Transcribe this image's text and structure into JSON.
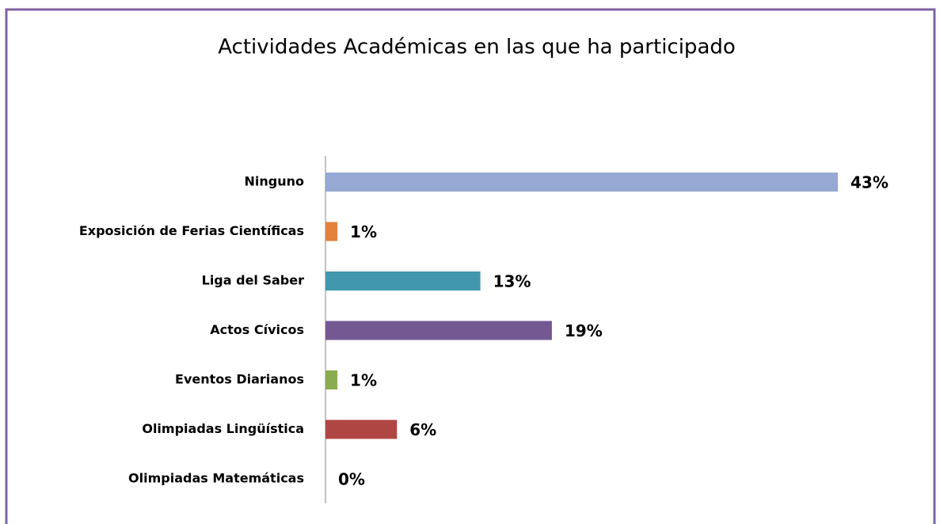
{
  "chart_data": {
    "type": "bar",
    "orientation": "horizontal",
    "title": "Actividades Académicas en las que ha participado",
    "categories": [
      "Ninguno",
      "Exposición de Ferias Científicas",
      "Liga del Saber",
      "Actos Cívicos",
      "Eventos Diarianos",
      "Olimpiadas Lingüística",
      "Olimpiadas Matemáticas"
    ],
    "values": [
      43,
      1,
      13,
      19,
      1,
      6,
      0
    ],
    "value_labels": [
      "43%",
      "1%",
      "13%",
      "19%",
      "1%",
      "6%",
      "0%"
    ],
    "colors": [
      "#95a9d3",
      "#e2823b",
      "#4198ae",
      "#735891",
      "#8aac50",
      "#b04644",
      "#4a7ebb"
    ]
  }
}
